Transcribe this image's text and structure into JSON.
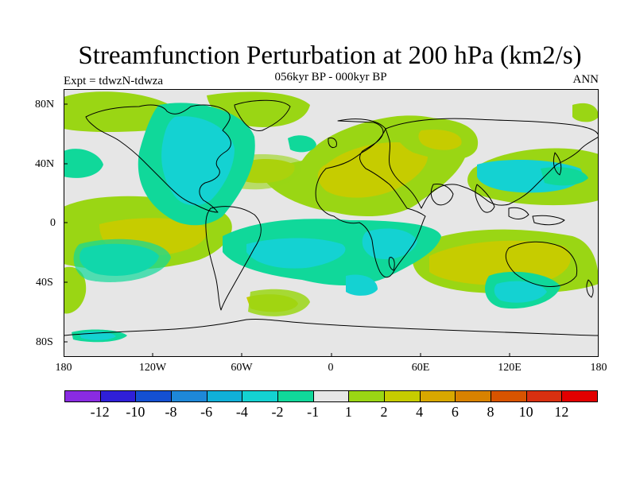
{
  "title": "Streamfunction Perturbation at 200 hPa (km2/s)",
  "subtitle": "056kyr BP - 000kyr BP",
  "left_label": "Expt = tdwzN-tdwza",
  "right_label": "ANN",
  "lat_labels": [
    "80N",
    "40N",
    "0",
    "40S",
    "80S"
  ],
  "lon_labels": [
    "180",
    "120W",
    "60W",
    "0",
    "60E",
    "120E",
    "180"
  ],
  "colorbar": {
    "colors": [
      "#8A2BE2",
      "#2F1FD8",
      "#1450D2",
      "#1E88D8",
      "#10B0D8",
      "#14D2D2",
      "#10D89A",
      "#E6E6E6",
      "#9AD614",
      "#C6CC00",
      "#D8A800",
      "#D88200",
      "#D85400",
      "#D83010",
      "#E20000"
    ],
    "labels": [
      "-12",
      "-10",
      "-8",
      "-6",
      "-4",
      "-2",
      "-1",
      "1",
      "2",
      "4",
      "6",
      "8",
      "10",
      "12"
    ]
  },
  "field_colors": {
    "background": "#E6E6E6",
    "green": "#9AD614",
    "olive": "#C6CC00",
    "teal": "#10D89A",
    "cyan": "#14D2D2",
    "coast": "#000000"
  }
}
